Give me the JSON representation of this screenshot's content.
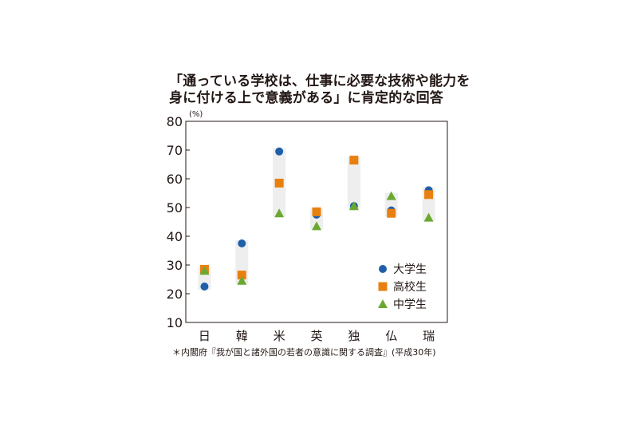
{
  "title_lines": [
    "「通っている学校は、仕事に必要な技術や能力を",
    "身に付ける上で意義がある」に肯定的な回答"
  ],
  "note": "＊内閣府『我が国と諸外国の若者の意識に関する調査』(平成30年)",
  "colors": {
    "university": "#1f5fa8",
    "highschool": "#e8800f",
    "middleschool": "#6aa832",
    "range_band": "#eeeeee",
    "frame": "#231815"
  },
  "chart_data": {
    "type": "scatter",
    "unit_label": "(%)",
    "categories": [
      "日",
      "韓",
      "米",
      "英",
      "独",
      "仏",
      "瑞"
    ],
    "ylim": [
      10,
      80
    ],
    "yticks": [
      10,
      20,
      30,
      40,
      50,
      60,
      70,
      80
    ],
    "grid": false,
    "legend_position": "bottom-right",
    "series": [
      {
        "name": "大学生",
        "marker": "circle",
        "values": [
          22.5,
          37.5,
          69.5,
          47.5,
          50.5,
          49,
          56
        ]
      },
      {
        "name": "高校生",
        "marker": "square",
        "values": [
          28.5,
          26.5,
          58.5,
          48.5,
          66.5,
          48,
          54.5
        ]
      },
      {
        "name": "中学生",
        "marker": "triangle",
        "values": [
          28,
          24.5,
          48,
          43.5,
          50.5,
          54,
          46.5
        ]
      }
    ]
  }
}
